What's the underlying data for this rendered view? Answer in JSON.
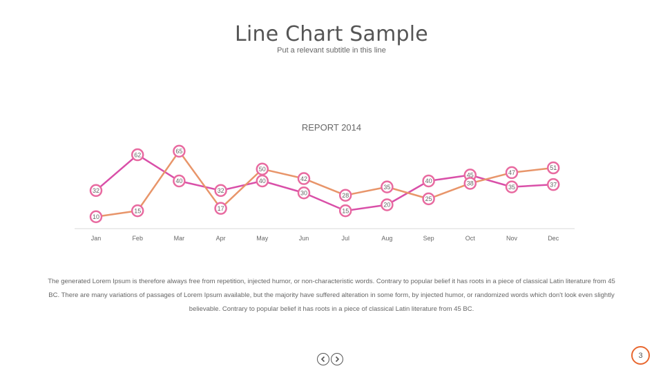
{
  "slide": {
    "title": "Line Chart Sample",
    "subtitle": "Put a relevant subtitle in this line",
    "body_text": "The generated Lorem Ipsum is therefore always free from repetition, injected humor, or non-characteristic words. Contrary to popular belief it has roots in a piece of classical Latin literature from 45 BC. There are many variations of passages of Lorem Ipsum available, but the majority have suffered alteration in some form, by injected humor, or randomized words which don't look even slightly believable. Contrary to popular belief it has roots in a piece of classical Latin literature from 45 BC.",
    "page_number": "3"
  },
  "nav": {
    "prev_icon": "chevron-left-icon",
    "next_icon": "chevron-right-icon"
  },
  "chart_data": {
    "type": "line",
    "title": "REPORT 2014",
    "categories": [
      "Jan",
      "Feb",
      "Mar",
      "Apr",
      "May",
      "Jun",
      "Jul",
      "Aug",
      "Sep",
      "Oct",
      "Nov",
      "Dec"
    ],
    "series": [
      {
        "color": "#d94fa8",
        "values": [
          32,
          62,
          40,
          32,
          40,
          30,
          15,
          20,
          40,
          45,
          35,
          37
        ]
      },
      {
        "color": "#e8956a",
        "values": [
          10,
          15,
          65,
          17,
          50,
          42,
          28,
          35,
          25,
          38,
          47,
          51
        ]
      }
    ],
    "ylim": [
      0,
      80
    ],
    "data_labels": true,
    "legend": "none",
    "grid": false,
    "marker_color": "#e86aa0"
  }
}
